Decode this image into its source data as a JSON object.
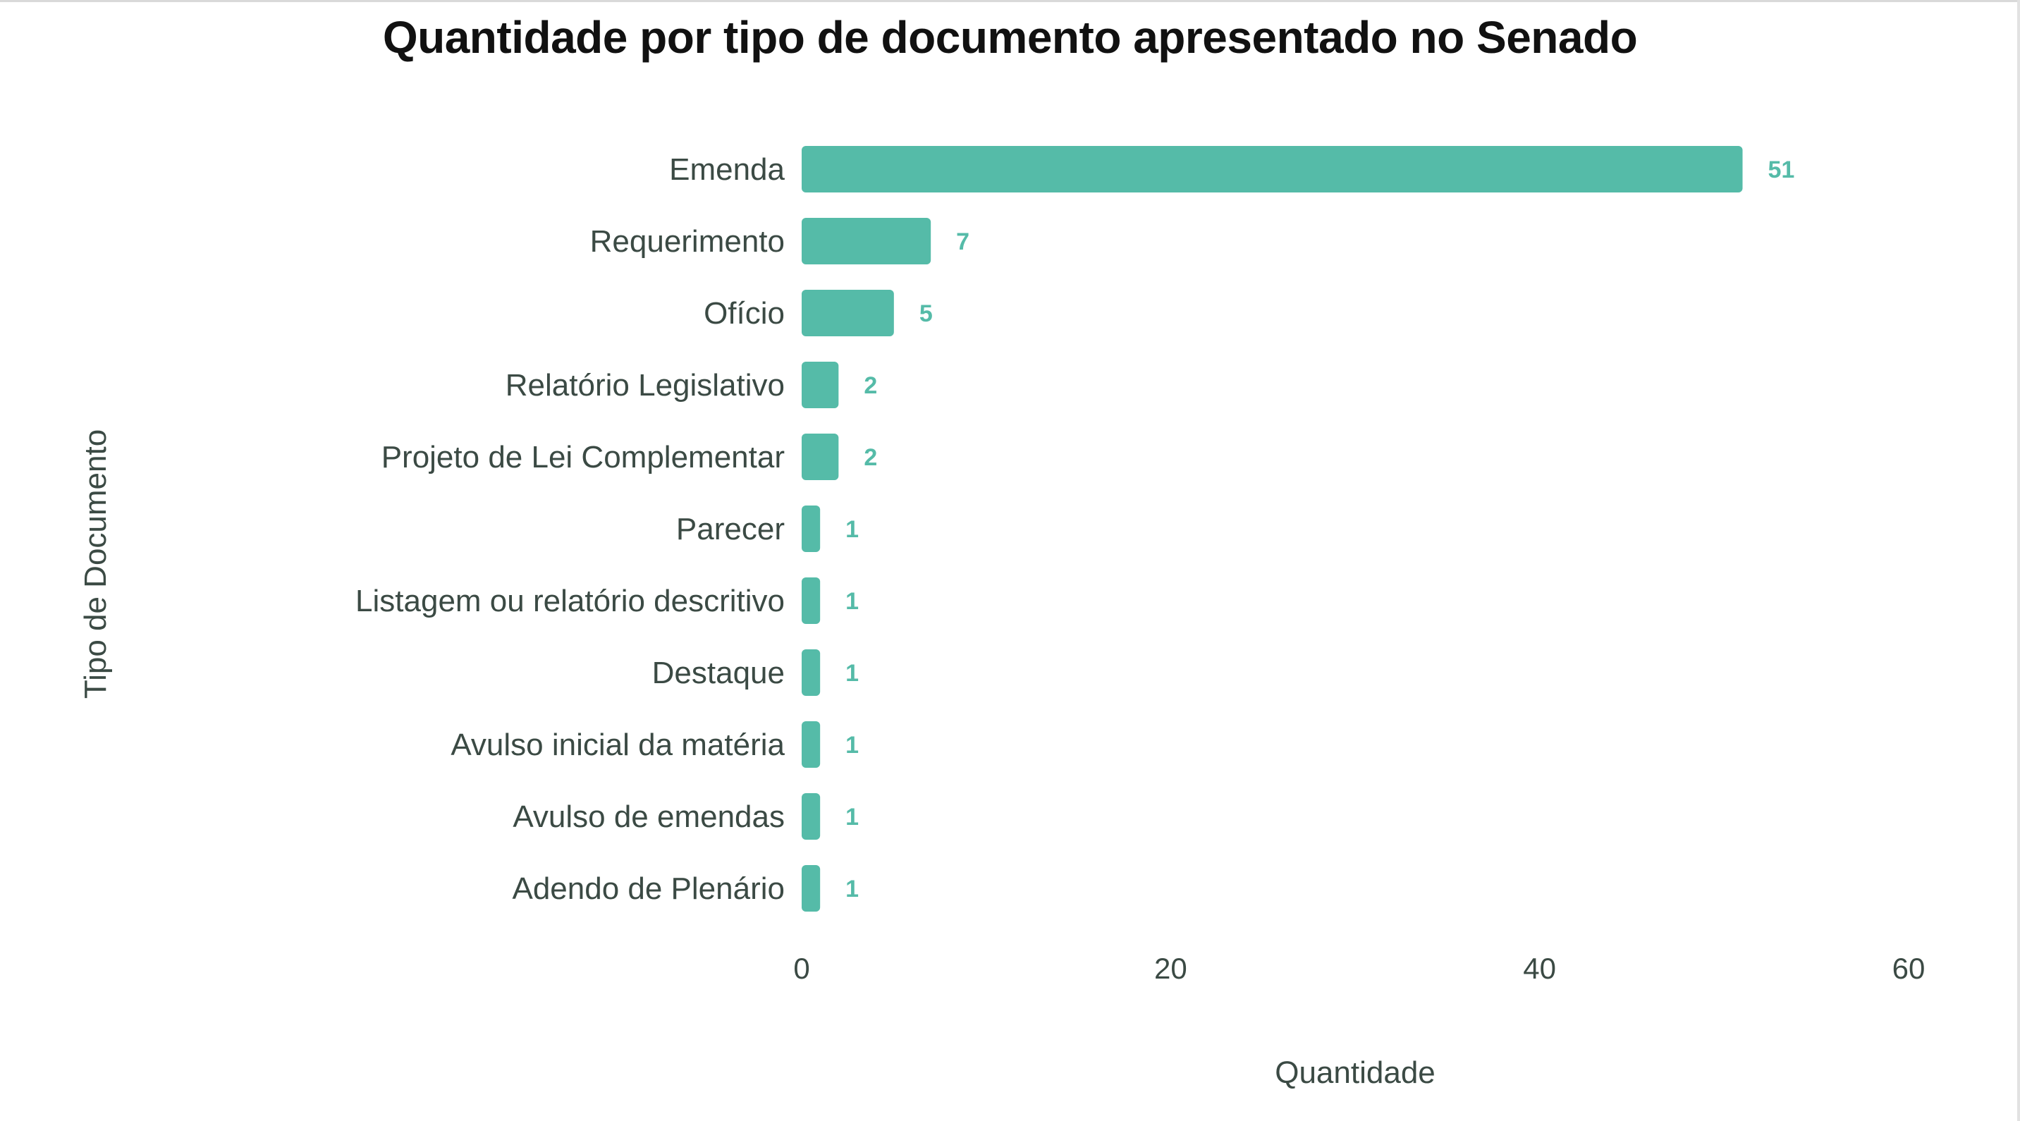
{
  "chart_data": {
    "type": "bar",
    "orientation": "horizontal",
    "title": "Quantidade por tipo de documento apresentado no Senado",
    "xlabel": "Quantidade",
    "ylabel": "Tipo de Documento",
    "xlim": [
      0,
      60
    ],
    "xticks": [
      0,
      20,
      40,
      60
    ],
    "grid": false,
    "legend": "none",
    "color": "#55bba8",
    "categories": [
      "Emenda",
      "Requerimento",
      "Ofício",
      "Relatório Legislativo",
      "Projeto de Lei Complementar",
      "Parecer",
      "Listagem ou relatório descritivo",
      "Destaque",
      "Avulso inicial da matéria",
      "Avulso de emendas",
      "Adendo de Plenário"
    ],
    "values": [
      51,
      7,
      5,
      2,
      2,
      1,
      1,
      1,
      1,
      1,
      1
    ]
  }
}
